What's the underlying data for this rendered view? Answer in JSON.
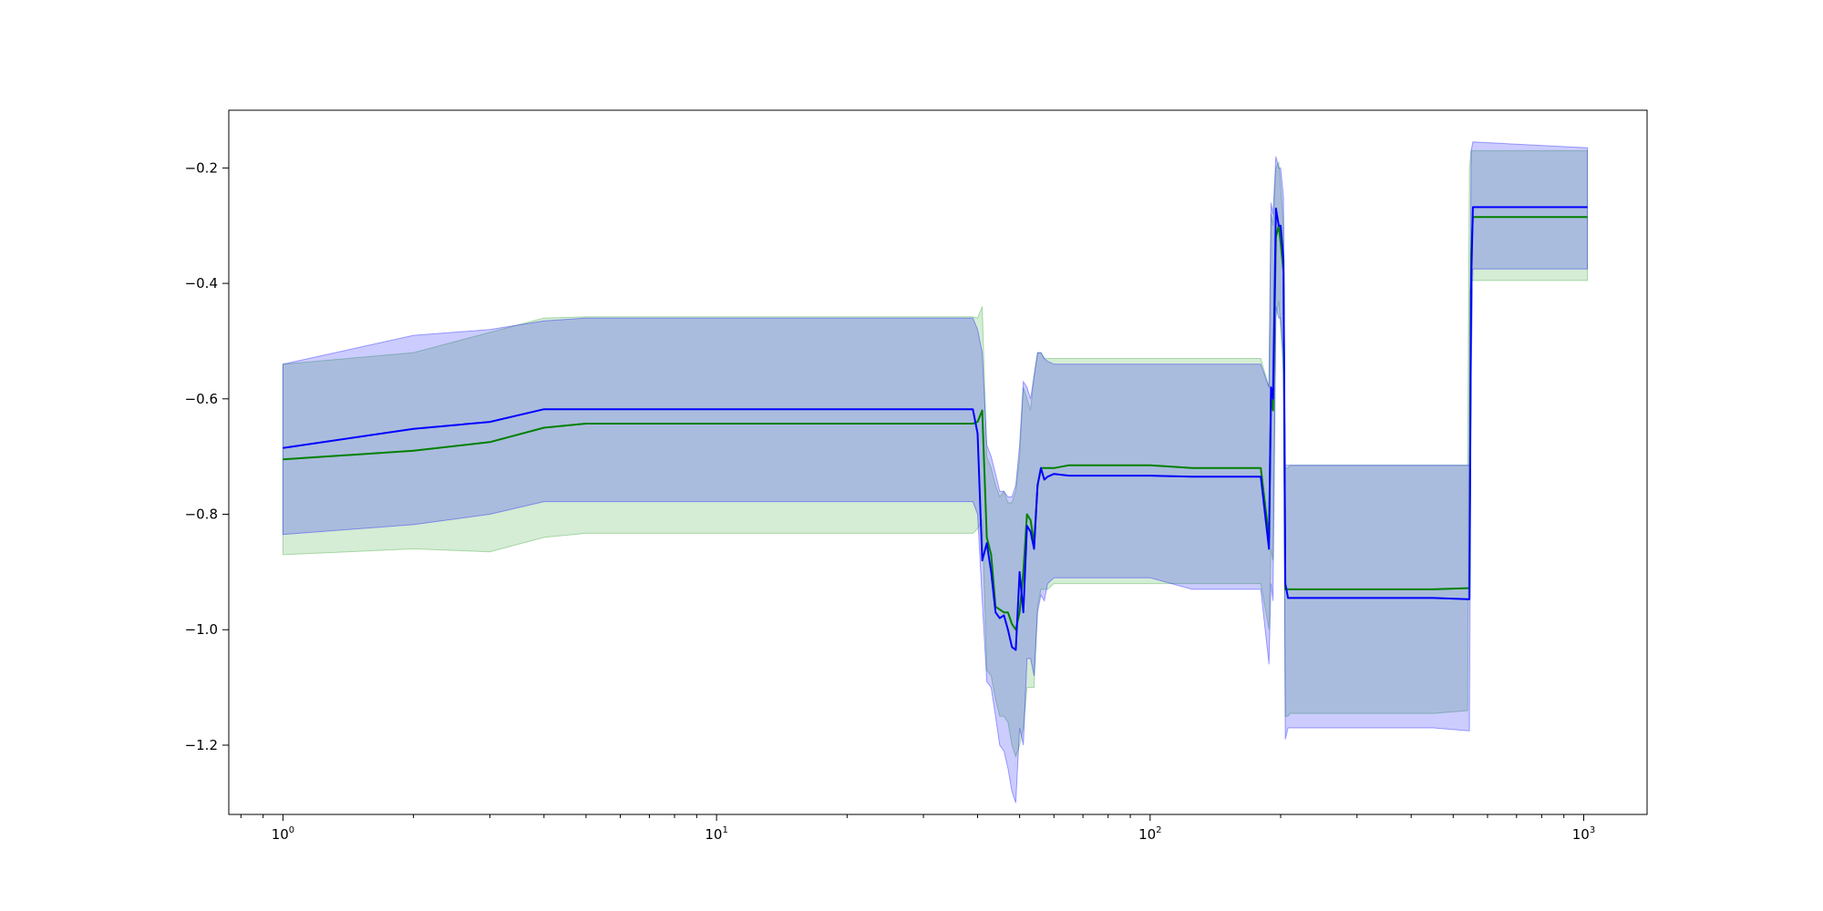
{
  "chart_data": {
    "type": "line",
    "title": "",
    "xlabel": "",
    "ylabel": "",
    "xscale": "log",
    "xlim": [
      0.75,
      1400
    ],
    "ylim": [
      -1.32,
      -0.1
    ],
    "grid": false,
    "legend": "none",
    "x_ticks": [
      {
        "value": 1,
        "base": "10",
        "exp": "0"
      },
      {
        "value": 10,
        "base": "10",
        "exp": "1"
      },
      {
        "value": 100,
        "base": "10",
        "exp": "2"
      },
      {
        "value": 1000,
        "base": "10",
        "exp": "3"
      }
    ],
    "y_ticks": [
      {
        "value": -0.2,
        "label": "−0.2"
      },
      {
        "value": -0.4,
        "label": "−0.4"
      },
      {
        "value": -0.6,
        "label": "−0.6"
      },
      {
        "value": -0.8,
        "label": "−0.8"
      },
      {
        "value": -1.0,
        "label": "−1.0"
      },
      {
        "value": -1.2,
        "label": "−1.2"
      }
    ],
    "series": [
      {
        "color": "#008000",
        "band_color": "#2ca02c",
        "x": [
          1,
          2,
          3,
          4,
          5,
          38,
          39,
          40,
          41,
          42,
          43,
          44,
          45,
          46,
          47,
          48,
          49,
          50,
          51,
          52,
          53,
          54,
          55,
          56,
          57,
          58,
          60,
          65,
          70,
          100,
          125,
          180,
          188,
          190,
          192,
          195,
          198,
          200,
          203,
          205,
          208,
          210,
          300,
          450,
          540,
          545,
          550,
          555,
          1020
        ],
        "y": [
          -0.705,
          -0.69,
          -0.675,
          -0.65,
          -0.643,
          -0.643,
          -0.643,
          -0.64,
          -0.62,
          -0.84,
          -0.87,
          -0.96,
          -0.965,
          -0.97,
          -0.97,
          -0.99,
          -1.0,
          -0.97,
          -0.9,
          -0.8,
          -0.81,
          -0.85,
          -0.75,
          -0.72,
          -0.72,
          -0.72,
          -0.72,
          -0.715,
          -0.715,
          -0.715,
          -0.72,
          -0.72,
          -0.84,
          -0.6,
          -0.62,
          -0.32,
          -0.3,
          -0.33,
          -0.38,
          -0.93,
          -0.93,
          -0.93,
          -0.93,
          -0.93,
          -0.928,
          -0.928,
          -0.35,
          -0.285,
          -0.285
        ],
        "upper": [
          -0.54,
          -0.52,
          -0.485,
          -0.46,
          -0.458,
          -0.458,
          -0.458,
          -0.46,
          -0.44,
          -0.7,
          -0.72,
          -0.75,
          -0.77,
          -0.76,
          -0.78,
          -0.78,
          -0.76,
          -0.7,
          -0.58,
          -0.6,
          -0.62,
          -0.56,
          -0.52,
          -0.52,
          -0.53,
          -0.53,
          -0.53,
          -0.53,
          -0.53,
          -0.53,
          -0.53,
          -0.53,
          -0.58,
          -0.28,
          -0.3,
          -0.2,
          -0.19,
          -0.23,
          -0.3,
          -0.72,
          -0.72,
          -0.715,
          -0.715,
          -0.715,
          -0.715,
          -0.2,
          -0.17,
          -0.17,
          -0.17
        ],
        "lower": [
          -0.87,
          -0.86,
          -0.865,
          -0.84,
          -0.833,
          -0.833,
          -0.833,
          -0.825,
          -0.81,
          -1.07,
          -1.08,
          -1.12,
          -1.15,
          -1.15,
          -1.16,
          -1.2,
          -1.22,
          -1.2,
          -1.17,
          -1.1,
          -1.1,
          -1.1,
          -0.96,
          -0.93,
          -0.93,
          -0.93,
          -0.92,
          -0.92,
          -0.92,
          -0.92,
          -0.92,
          -0.92,
          -1.0,
          -0.86,
          -0.88,
          -0.46,
          -0.43,
          -0.48,
          -0.56,
          -1.15,
          -1.15,
          -1.145,
          -1.145,
          -1.145,
          -1.14,
          -0.42,
          -0.395,
          -0.395,
          -0.395
        ]
      },
      {
        "color": "#0000ff",
        "band_color": "#0000ff",
        "x": [
          1,
          2,
          3,
          4,
          5,
          38,
          39,
          40,
          41,
          42,
          43,
          44,
          45,
          46,
          47,
          48,
          49,
          50,
          51,
          52,
          53,
          54,
          55,
          56,
          57,
          58,
          60,
          65,
          70,
          100,
          125,
          180,
          188,
          190,
          192,
          195,
          198,
          200,
          203,
          205,
          208,
          210,
          300,
          450,
          540,
          545,
          550,
          555,
          1020
        ],
        "y": [
          -0.685,
          -0.652,
          -0.64,
          -0.618,
          -0.618,
          -0.618,
          -0.618,
          -0.66,
          -0.88,
          -0.85,
          -0.9,
          -0.97,
          -0.98,
          -0.975,
          -1.0,
          -1.03,
          -1.035,
          -0.9,
          -0.97,
          -0.82,
          -0.83,
          -0.86,
          -0.75,
          -0.72,
          -0.74,
          -0.735,
          -0.73,
          -0.733,
          -0.733,
          -0.733,
          -0.735,
          -0.735,
          -0.86,
          -0.58,
          -0.6,
          -0.27,
          -0.3,
          -0.3,
          -0.36,
          -0.92,
          -0.945,
          -0.945,
          -0.945,
          -0.945,
          -0.947,
          -0.947,
          -0.4,
          -0.268,
          -0.268
        ],
        "upper": [
          -0.54,
          -0.49,
          -0.48,
          -0.465,
          -0.46,
          -0.46,
          -0.46,
          -0.48,
          -0.52,
          -0.68,
          -0.7,
          -0.73,
          -0.76,
          -0.76,
          -0.77,
          -0.77,
          -0.75,
          -0.68,
          -0.57,
          -0.58,
          -0.6,
          -0.56,
          -0.52,
          -0.52,
          -0.53,
          -0.535,
          -0.54,
          -0.54,
          -0.54,
          -0.54,
          -0.54,
          -0.54,
          -0.58,
          -0.26,
          -0.28,
          -0.18,
          -0.2,
          -0.2,
          -0.25,
          -0.715,
          -0.715,
          -0.715,
          -0.715,
          -0.715,
          -0.715,
          -0.715,
          -0.17,
          -0.155,
          -0.165
        ],
        "lower": [
          -0.835,
          -0.818,
          -0.8,
          -0.778,
          -0.778,
          -0.778,
          -0.778,
          -0.8,
          -0.95,
          -1.09,
          -1.1,
          -1.15,
          -1.2,
          -1.21,
          -1.24,
          -1.28,
          -1.3,
          -1.17,
          -1.2,
          -1.05,
          -1.05,
          -1.08,
          -0.97,
          -0.94,
          -0.95,
          -0.92,
          -0.91,
          -0.91,
          -0.91,
          -0.91,
          -0.93,
          -0.93,
          -1.06,
          -0.92,
          -0.95,
          -0.44,
          -0.46,
          -0.46,
          -0.53,
          -1.19,
          -1.17,
          -1.17,
          -1.17,
          -1.17,
          -1.175,
          -1.175,
          -0.56,
          -0.375,
          -0.375
        ]
      }
    ]
  }
}
